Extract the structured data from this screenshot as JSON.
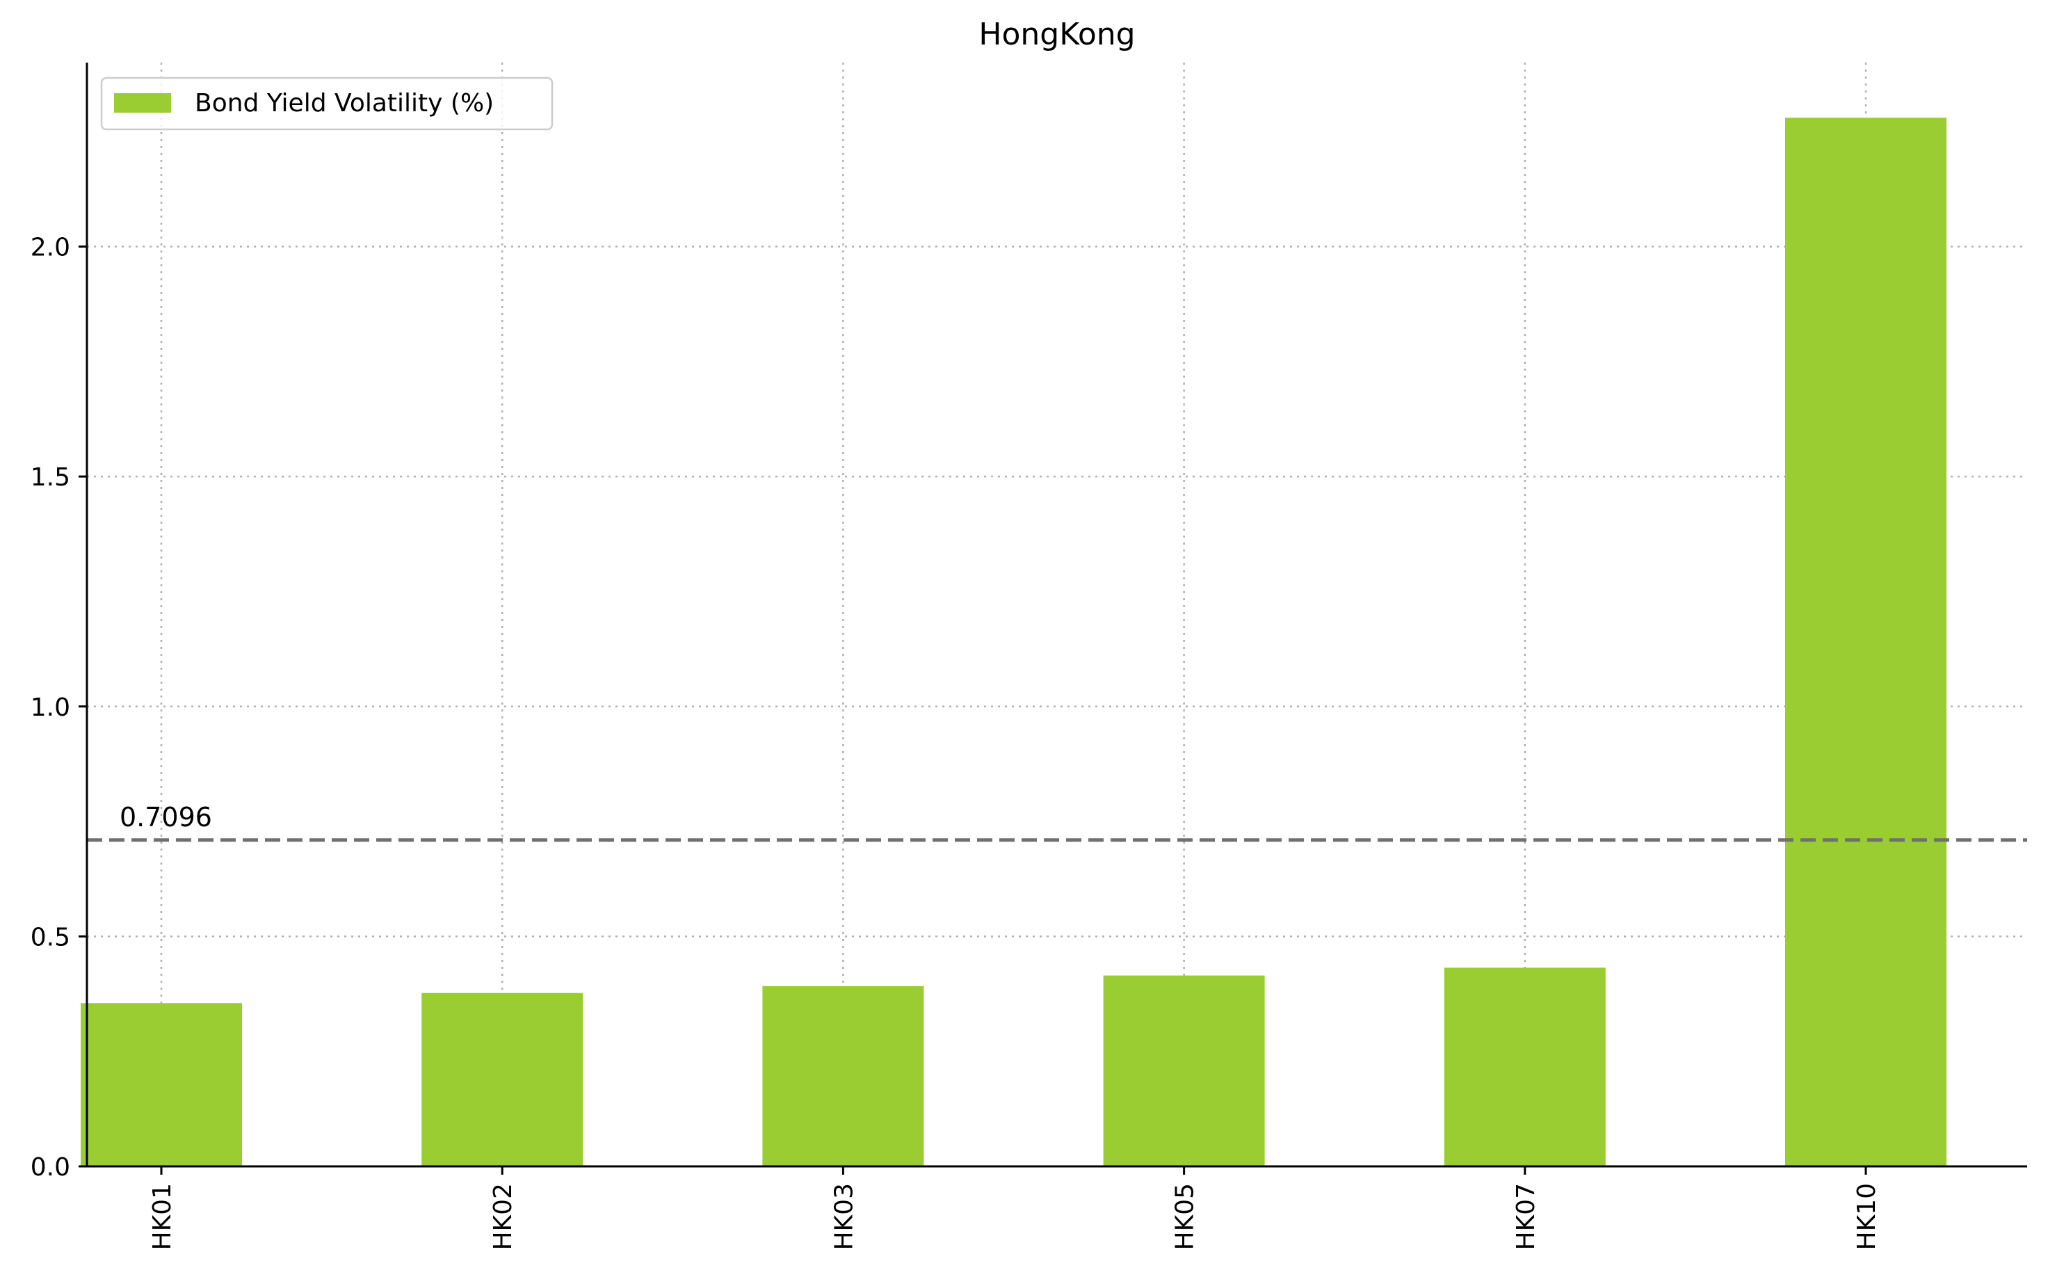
{
  "chart_data": {
    "type": "bar",
    "title": "HongKong",
    "categories": [
      "HK01",
      "HK02",
      "HK03",
      "HK05",
      "HK07",
      "HK10"
    ],
    "series": [
      {
        "name": "Bond Yield Volatility (%)",
        "color": "#9acd32",
        "values": [
          0.355,
          0.377,
          0.392,
          0.415,
          0.432,
          2.28
        ]
      }
    ],
    "reference_line": {
      "value": 0.7096,
      "label": "0.7096",
      "color": "#707070",
      "style": "dashed"
    },
    "xlabel": "",
    "ylabel": "",
    "ylim": [
      0,
      2.4
    ],
    "yticks": [
      0.0,
      0.5,
      1.0,
      1.5,
      2.0
    ],
    "ytick_labels": [
      "0.0",
      "0.5",
      "1.0",
      "1.5",
      "2.0"
    ],
    "grid": true,
    "legend": {
      "position": "top-left",
      "entries": [
        "Bond Yield Volatility (%)"
      ]
    }
  }
}
